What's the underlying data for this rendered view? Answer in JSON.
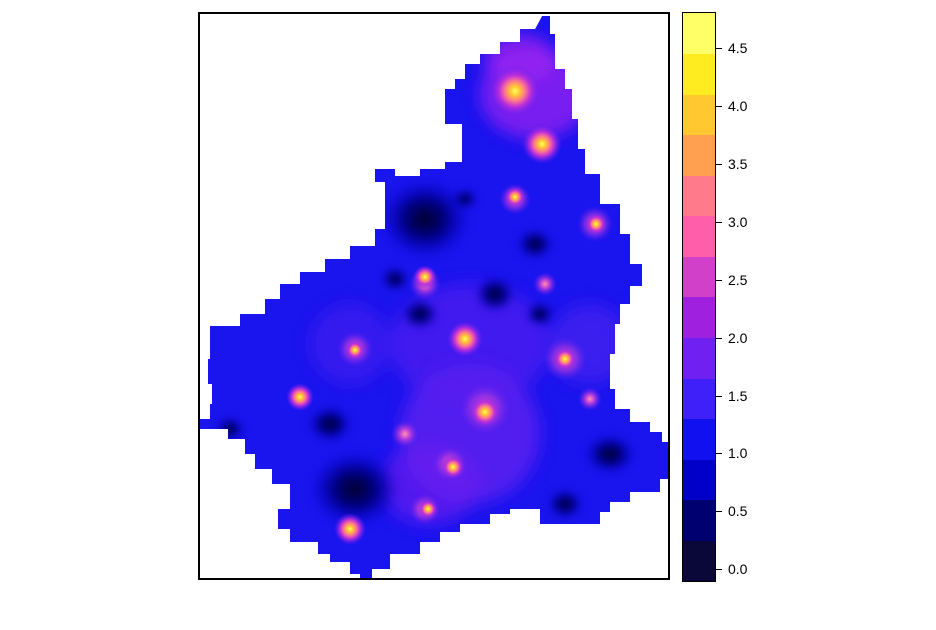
{
  "legend": {
    "colors": [
      "#0a0838",
      "#000070",
      "#0000c8",
      "#1010f0",
      "#4020f8",
      "#7020f0",
      "#a020e0",
      "#d040c8",
      "#ff5eaa",
      "#ff7a8a",
      "#ffa050",
      "#ffc830",
      "#ffec20",
      "#ffff68"
    ],
    "ticks": [
      {
        "value": 0.0,
        "label": "0.0"
      },
      {
        "value": 0.5,
        "label": "0.5"
      },
      {
        "value": 1.0,
        "label": "1.0"
      },
      {
        "value": 1.5,
        "label": "1.5"
      },
      {
        "value": 2.0,
        "label": "2.0"
      },
      {
        "value": 2.5,
        "label": "2.5"
      },
      {
        "value": 3.0,
        "label": "3.0"
      },
      {
        "value": 3.5,
        "label": "3.5"
      },
      {
        "value": 4.0,
        "label": "4.0"
      },
      {
        "value": 4.5,
        "label": "4.5"
      }
    ],
    "min": -0.1,
    "max": 4.8
  },
  "map": {
    "base_color": "#1a14ee",
    "outline_color": "#1a14ee"
  }
}
